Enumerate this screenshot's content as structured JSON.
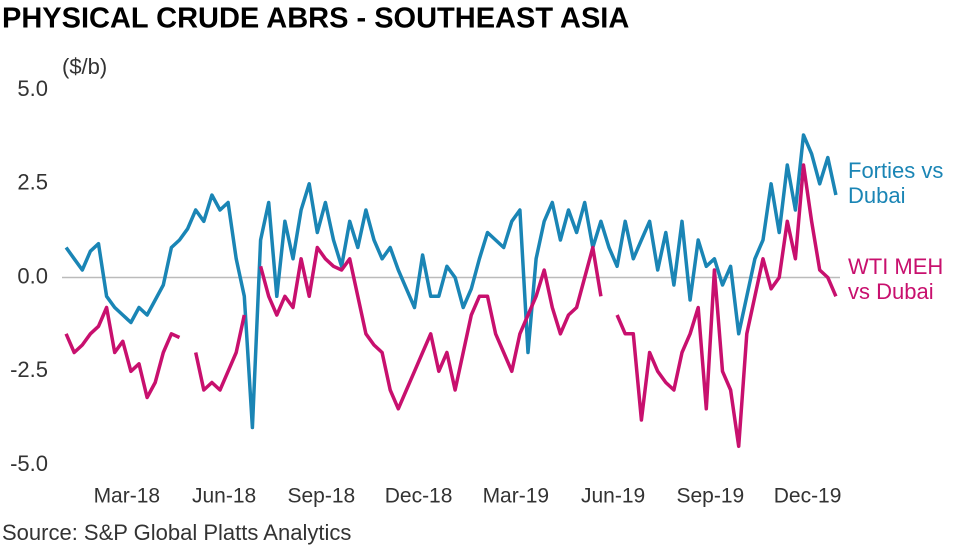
{
  "chart_data": {
    "type": "line",
    "title": "PHYSICAL CRUDE ABRS - SOUTHEAST ASIA",
    "y_label": "($/b)",
    "source": "Source: S&P Global Platts Analytics",
    "x": [
      "2018-01",
      "2018-01",
      "2018-01",
      "2018-01",
      "2018-02",
      "2018-02",
      "2018-02",
      "2018-02",
      "2018-03",
      "2018-03",
      "2018-03",
      "2018-03",
      "2018-04",
      "2018-04",
      "2018-04",
      "2018-04",
      "2018-05",
      "2018-05",
      "2018-05",
      "2018-05",
      "2018-06",
      "2018-06",
      "2018-06",
      "2018-06",
      "2018-07",
      "2018-07",
      "2018-07",
      "2018-07",
      "2018-08",
      "2018-08",
      "2018-08",
      "2018-08",
      "2018-09",
      "2018-09",
      "2018-09",
      "2018-09",
      "2018-10",
      "2018-10",
      "2018-10",
      "2018-10",
      "2018-11",
      "2018-11",
      "2018-11",
      "2018-11",
      "2018-12",
      "2018-12",
      "2018-12",
      "2018-12",
      "2019-01",
      "2019-01",
      "2019-01",
      "2019-01",
      "2019-02",
      "2019-02",
      "2019-02",
      "2019-02",
      "2019-03",
      "2019-03",
      "2019-03",
      "2019-03",
      "2019-04",
      "2019-04",
      "2019-04",
      "2019-04",
      "2019-05",
      "2019-05",
      "2019-05",
      "2019-05",
      "2019-06",
      "2019-06",
      "2019-06",
      "2019-06",
      "2019-07",
      "2019-07",
      "2019-07",
      "2019-07",
      "2019-08",
      "2019-08",
      "2019-08",
      "2019-08",
      "2019-09",
      "2019-09",
      "2019-09",
      "2019-09",
      "2019-10",
      "2019-10",
      "2019-10",
      "2019-10",
      "2019-11",
      "2019-11",
      "2019-11",
      "2019-11",
      "2019-12",
      "2019-12",
      "2019-12",
      "2019-12"
    ],
    "xticks": [
      {
        "value": "2018-03",
        "label": "Mar-18"
      },
      {
        "value": "2018-06",
        "label": "Jun-18"
      },
      {
        "value": "2018-09",
        "label": "Sep-18"
      },
      {
        "value": "2018-12",
        "label": "Dec-18"
      },
      {
        "value": "2019-03",
        "label": "Mar-19"
      },
      {
        "value": "2019-06",
        "label": "Jun-19"
      },
      {
        "value": "2019-09",
        "label": "Sep-19"
      },
      {
        "value": "2019-12",
        "label": "Dec-19"
      }
    ],
    "ylim": [
      -5,
      5
    ],
    "yticks": [
      {
        "value": 5,
        "label": "5.0"
      },
      2.5,
      {
        "value": 0,
        "label": "0.0"
      },
      -2.5,
      {
        "value": -5,
        "label": "-5.0"
      }
    ],
    "zero_line": true,
    "series": [
      {
        "name": "Forties vs Dubai",
        "color": "#1a85b5",
        "values": [
          0.8,
          0.5,
          0.2,
          0.7,
          0.9,
          -0.5,
          -0.8,
          -1.0,
          -1.2,
          -0.8,
          -1.0,
          -0.6,
          -0.2,
          0.8,
          1.0,
          1.3,
          1.8,
          1.5,
          2.2,
          1.8,
          2.0,
          0.5,
          -0.5,
          -4.0,
          1.0,
          2.0,
          -0.5,
          1.5,
          0.5,
          1.8,
          2.5,
          1.2,
          2.0,
          1.0,
          0.3,
          1.5,
          0.8,
          1.8,
          1.0,
          0.5,
          0.8,
          0.2,
          -0.3,
          -0.8,
          0.6,
          -0.5,
          -0.5,
          0.3,
          0.0,
          -0.8,
          -0.3,
          0.5,
          1.2,
          1.0,
          0.8,
          1.5,
          1.8,
          -2.0,
          0.5,
          1.5,
          2.0,
          1.0,
          1.8,
          1.2,
          2.0,
          0.8,
          1.5,
          0.8,
          0.3,
          1.5,
          0.5,
          1.0,
          1.5,
          0.2,
          1.2,
          -0.2,
          1.5,
          -0.6,
          1.0,
          0.3,
          0.5,
          -0.2,
          0.3,
          -1.5,
          -0.5,
          0.5,
          1.0,
          2.5,
          1.2,
          3.0,
          1.8,
          3.8,
          3.3,
          2.5,
          3.2,
          2.2
        ]
      },
      {
        "name": "WTI MEH vs Dubai",
        "color": "#c8106e",
        "values": [
          -1.5,
          -2.0,
          -1.8,
          -1.5,
          -1.3,
          -0.8,
          -2.0,
          -1.7,
          -2.5,
          -2.3,
          -3.2,
          -2.8,
          -2.0,
          -1.5,
          -1.6,
          null,
          -2.0,
          -3.0,
          -2.8,
          -3.0,
          -2.5,
          -2.0,
          -1.0,
          null,
          0.3,
          -0.5,
          -1.0,
          -0.5,
          -0.8,
          0.5,
          -0.5,
          0.8,
          0.5,
          0.3,
          0.2,
          0.5,
          -0.5,
          -1.5,
          -1.8,
          -2.0,
          -3.0,
          -3.5,
          -3.0,
          -2.5,
          -2.0,
          -1.5,
          -2.5,
          -2.0,
          -3.0,
          -2.0,
          -1.0,
          -0.5,
          -0.5,
          -1.5,
          -2.0,
          -2.5,
          -1.5,
          -1.0,
          -0.5,
          0.2,
          -0.8,
          -1.5,
          -1.0,
          -0.8,
          0.0,
          0.8,
          -0.5,
          null,
          -1.0,
          -1.5,
          -1.5,
          -3.8,
          -2.0,
          -2.5,
          -2.8,
          -3.0,
          -2.0,
          -1.5,
          -0.8,
          -3.5,
          0.2,
          -2.5,
          -3.0,
          -4.5,
          -1.5,
          -0.5,
          0.5,
          -0.3,
          0.0,
          1.5,
          0.5,
          3.0,
          1.5,
          0.2,
          0.0,
          -0.5
        ]
      }
    ]
  }
}
